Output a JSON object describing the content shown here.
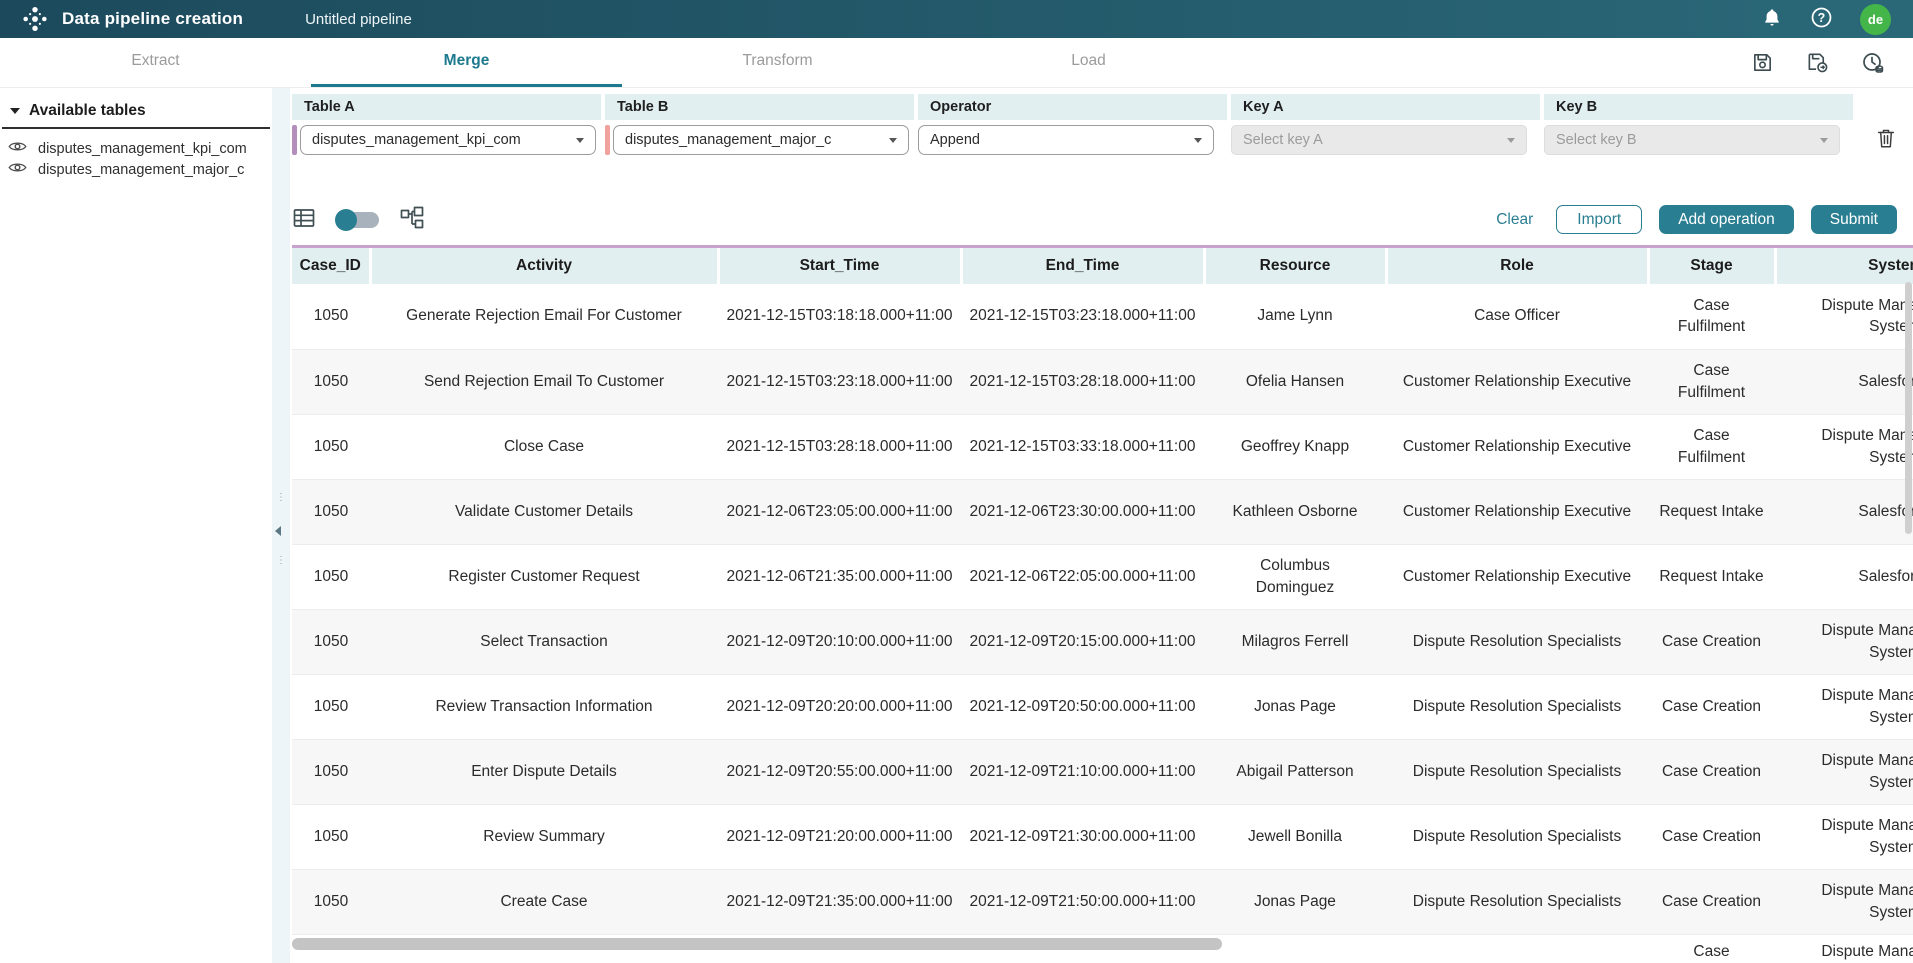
{
  "topbar": {
    "app_title": "Data pipeline creation",
    "pipeline_name": "Untitled pipeline",
    "avatar_initials": "de"
  },
  "tabs": [
    {
      "label": "Extract",
      "active": false
    },
    {
      "label": "Merge",
      "active": true
    },
    {
      "label": "Transform",
      "active": false
    },
    {
      "label": "Load",
      "active": false
    }
  ],
  "sidebar": {
    "header": "Available tables",
    "items": [
      {
        "label": "disputes_management_kpi_com"
      },
      {
        "label": "disputes_management_major_c"
      }
    ]
  },
  "merge_config": {
    "columns": [
      "Table A",
      "Table B",
      "Operator",
      "Key A",
      "Key B"
    ],
    "table_a": {
      "value": "disputes_management_kpi_com"
    },
    "table_b": {
      "value": "disputes_management_major_c"
    },
    "operator": {
      "value": "Append"
    },
    "key_a": {
      "placeholder": "Select key A"
    },
    "key_b": {
      "placeholder": "Select key B"
    }
  },
  "toolbar": {
    "clear_label": "Clear",
    "import_label": "Import",
    "add_operation_label": "Add operation",
    "submit_label": "Submit"
  },
  "table": {
    "headers": [
      "Case_ID",
      "Activity",
      "Start_Time",
      "End_Time",
      "Resource",
      "Role",
      "Stage",
      "System"
    ],
    "rows": [
      [
        "1050",
        "Generate Rejection Email For Customer",
        "2021-12-15T03:18:18.000+11:00",
        "2021-12-15T03:23:18.000+11:00",
        "Jame Lynn",
        "Case Officer",
        "Case\nFulfilment",
        "Dispute Management\nSystem"
      ],
      [
        "1050",
        "Send Rejection Email To Customer",
        "2021-12-15T03:23:18.000+11:00",
        "2021-12-15T03:28:18.000+11:00",
        "Ofelia Hansen",
        "Customer Relationship Executive",
        "Case\nFulfilment",
        "Salesforce"
      ],
      [
        "1050",
        "Close Case",
        "2021-12-15T03:28:18.000+11:00",
        "2021-12-15T03:33:18.000+11:00",
        "Geoffrey Knapp",
        "Customer Relationship Executive",
        "Case\nFulfilment",
        "Dispute Management\nSystem"
      ],
      [
        "1050",
        "Validate Customer Details",
        "2021-12-06T23:05:00.000+11:00",
        "2021-12-06T23:30:00.000+11:00",
        "Kathleen Osborne",
        "Customer Relationship Executive",
        "Request Intake",
        "Salesforce"
      ],
      [
        "1050",
        "Register Customer Request",
        "2021-12-06T21:35:00.000+11:00",
        "2021-12-06T22:05:00.000+11:00",
        "Columbus\nDominguez",
        "Customer Relationship Executive",
        "Request Intake",
        "Salesforce"
      ],
      [
        "1050",
        "Select Transaction",
        "2021-12-09T20:10:00.000+11:00",
        "2021-12-09T20:15:00.000+11:00",
        "Milagros Ferrell",
        "Dispute Resolution Specialists",
        "Case Creation",
        "Dispute Management\nSystem"
      ],
      [
        "1050",
        "Review Transaction Information",
        "2021-12-09T20:20:00.000+11:00",
        "2021-12-09T20:50:00.000+11:00",
        "Jonas Page",
        "Dispute Resolution Specialists",
        "Case Creation",
        "Dispute Management\nSystem"
      ],
      [
        "1050",
        "Enter Dispute Details",
        "2021-12-09T20:55:00.000+11:00",
        "2021-12-09T21:10:00.000+11:00",
        "Abigail Patterson",
        "Dispute Resolution Specialists",
        "Case Creation",
        "Dispute Management\nSystem"
      ],
      [
        "1050",
        "Review Summary",
        "2021-12-09T21:20:00.000+11:00",
        "2021-12-09T21:30:00.000+11:00",
        "Jewell Bonilla",
        "Dispute Resolution Specialists",
        "Case Creation",
        "Dispute Management\nSystem"
      ],
      [
        "1050",
        "Create Case",
        "2021-12-09T21:35:00.000+11:00",
        "2021-12-09T21:50:00.000+11:00",
        "Jonas Page",
        "Dispute Resolution Specialists",
        "Case Creation",
        "Dispute Management\nSystem"
      ],
      [
        "",
        "",
        "",
        "",
        "",
        "",
        "Case",
        "Dispute Management"
      ]
    ],
    "last_row_partial": true
  },
  "icons": {
    "topbar": [
      "logo-icon",
      "bell-icon",
      "help-icon"
    ],
    "tabbar": [
      "save-icon",
      "save-as-icon",
      "history-icon"
    ],
    "toolbar": [
      "table-view-icon",
      "view-toggle",
      "flow-view-icon"
    ],
    "config": [
      "trash-icon"
    ],
    "sidebar": [
      "caret-down-icon",
      "eye-icon"
    ]
  },
  "colors": {
    "topbar_left": "#1c4a5c",
    "topbar_right": "#2a6878",
    "accent": "#2a7e92",
    "tab_active": "#1d7a8e",
    "panel": "#e2eff1",
    "plum": "#c9a2cb",
    "mauve": "#b48ebc",
    "salmon": "#f0a29d",
    "avatar_green": "#43b549",
    "row_alt": "#f7f7f7"
  }
}
